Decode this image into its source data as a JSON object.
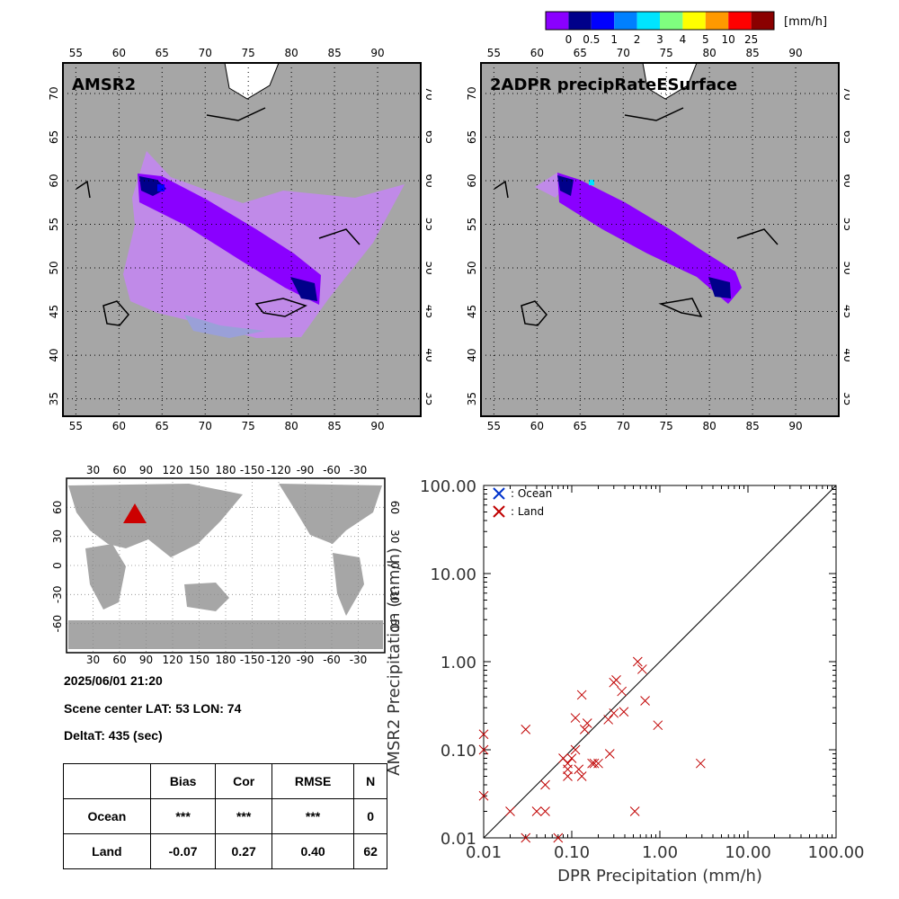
{
  "colorbar": {
    "unit": "[mm/h]",
    "ticks": [
      "0",
      "0.5",
      "1",
      "2",
      "3",
      "4",
      "5",
      "10",
      "25"
    ],
    "colors": [
      "#8a00ff",
      "#00008a",
      "#0000ff",
      "#0080ff",
      "#00e4ff",
      "#7fff7f",
      "#ffff00",
      "#ff9900",
      "#ff0000",
      "#8a0000"
    ]
  },
  "maps": [
    {
      "title": "AMSR2",
      "lon_ticks": [
        "55",
        "60",
        "65",
        "70",
        "75",
        "80",
        "85",
        "90"
      ],
      "lat_ticks": [
        "35",
        "40",
        "45",
        "50",
        "55",
        "60",
        "65",
        "70"
      ]
    },
    {
      "title": "2ADPR precipRateESurface",
      "lon_ticks": [
        "55",
        "60",
        "65",
        "70",
        "75",
        "80",
        "85",
        "90"
      ],
      "lat_ticks": [
        "35",
        "40",
        "45",
        "50",
        "55",
        "60",
        "65",
        "70"
      ]
    }
  ],
  "globe": {
    "lon_ticks": [
      "30",
      "60",
      "90",
      "120",
      "150",
      "180",
      "-150",
      "-120",
      "-90",
      "-60",
      "-30"
    ],
    "lat_ticks": [
      "-60",
      "-30",
      "0",
      "30",
      "60"
    ],
    "marker_color": "#cc0000"
  },
  "info": {
    "datetime": "2025/06/01 21:20",
    "scene_center": "Scene center LAT: 53   LON:  74",
    "delta_t": "DeltaT:  435 (sec)"
  },
  "stats_table": {
    "headers": [
      "",
      "Bias",
      "Cor",
      "RMSE",
      "N"
    ],
    "rows": [
      [
        "Ocean",
        "***",
        "***",
        "***",
        "0"
      ],
      [
        "Land",
        "-0.07",
        "0.27",
        "0.40",
        "62"
      ]
    ]
  },
  "chart_data": {
    "type": "scatter",
    "xlabel": "DPR Precipitation (mm/h)",
    "ylabel": "AMSR2 Precipitation (mm/h)",
    "xscale": "log",
    "yscale": "log",
    "xlim": [
      0.01,
      100
    ],
    "ylim": [
      0.01,
      100
    ],
    "x_tick_labels": [
      "0.01",
      "0.10",
      "1.00",
      "10.00",
      "100.00"
    ],
    "y_tick_labels": [
      "0.01",
      "0.10",
      "1.00",
      "10.00",
      "100.00"
    ],
    "reference_line": "1:1",
    "legend_position": "top-left",
    "series": [
      {
        "name": ": Ocean",
        "color": "#0033cc",
        "marker": "x",
        "points": []
      },
      {
        "name": ": Land",
        "color": "#c00000",
        "marker": "x",
        "points": [
          [
            0.01,
            0.15
          ],
          [
            0.01,
            0.1
          ],
          [
            0.01,
            0.03
          ],
          [
            0.02,
            0.02
          ],
          [
            0.03,
            0.17
          ],
          [
            0.03,
            0.01
          ],
          [
            0.04,
            0.02
          ],
          [
            0.05,
            0.02
          ],
          [
            0.05,
            0.04
          ],
          [
            0.07,
            0.01
          ],
          [
            0.08,
            0.08
          ],
          [
            0.09,
            0.07
          ],
          [
            0.09,
            0.06
          ],
          [
            0.09,
            0.05
          ],
          [
            0.1,
            0.08
          ],
          [
            0.11,
            0.1
          ],
          [
            0.11,
            0.23
          ],
          [
            0.12,
            0.06
          ],
          [
            0.13,
            0.42
          ],
          [
            0.13,
            0.05
          ],
          [
            0.14,
            0.17
          ],
          [
            0.15,
            0.2
          ],
          [
            0.17,
            0.07
          ],
          [
            0.18,
            0.07
          ],
          [
            0.2,
            0.07
          ],
          [
            0.26,
            0.22
          ],
          [
            0.27,
            0.09
          ],
          [
            0.3,
            0.26
          ],
          [
            0.3,
            0.58
          ],
          [
            0.32,
            0.62
          ],
          [
            0.37,
            0.46
          ],
          [
            0.39,
            0.27
          ],
          [
            0.52,
            0.02
          ],
          [
            0.56,
            1.0
          ],
          [
            0.63,
            0.82
          ],
          [
            0.68,
            0.36
          ],
          [
            0.95,
            0.19
          ],
          [
            2.9,
            0.07
          ]
        ]
      }
    ]
  }
}
